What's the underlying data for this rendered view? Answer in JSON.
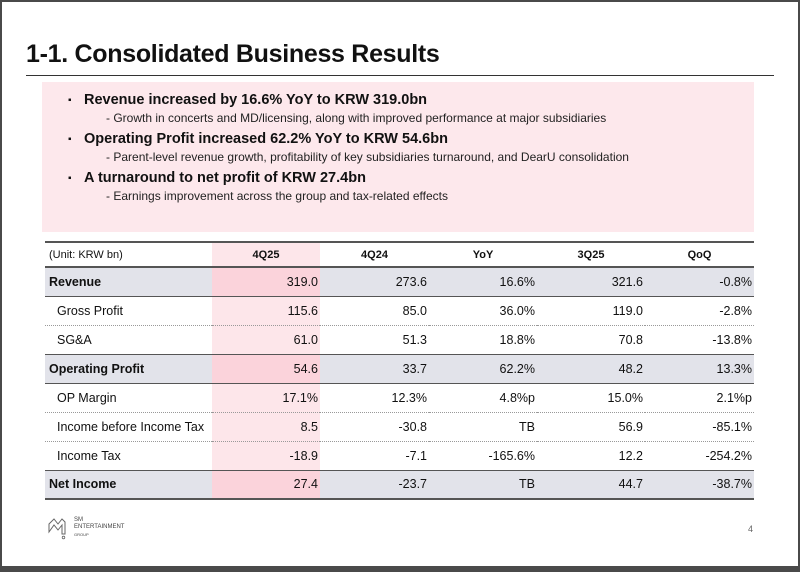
{
  "title": "1-1. Consolidated Business Results",
  "highlights": [
    {
      "bullet": "Revenue increased by 16.6% YoY to KRW 319.0bn",
      "sub": "Growth in concerts and MD/licensing, along with improved performance at major subsidiaries"
    },
    {
      "bullet": "Operating Profit increased 62.2% YoY to KRW 54.6bn",
      "sub": "Parent-level revenue growth, profitability of key subsidiaries turnaround, and DearU consolidation"
    },
    {
      "bullet": "A turnaround to net profit of KRW 27.4bn",
      "sub": "Earnings improvement across the group and tax-related effects"
    }
  ],
  "table": {
    "unit": "(Unit: KRW bn)",
    "columns": [
      "4Q25",
      "4Q24",
      "YoY",
      "3Q25",
      "QoQ"
    ],
    "rows": [
      {
        "label": "Revenue",
        "values": [
          "319.0",
          "273.6",
          "16.6%",
          "321.6",
          "-0.8%"
        ]
      },
      {
        "label": "Gross Profit",
        "values": [
          "115.6",
          "85.0",
          "36.0%",
          "119.0",
          "-2.8%"
        ]
      },
      {
        "label": "SG&A",
        "values": [
          "61.0",
          "51.3",
          "18.8%",
          "70.8",
          "-13.8%"
        ]
      },
      {
        "label": "Operating Profit",
        "values": [
          "54.6",
          "33.7",
          "62.2%",
          "48.2",
          "13.3%"
        ]
      },
      {
        "label": "OP Margin",
        "values": [
          "17.1%",
          "12.3%",
          "4.8%p",
          "15.0%",
          "2.1%p"
        ]
      },
      {
        "label": "Income before Income Tax",
        "values": [
          "8.5",
          "-30.8",
          "TB",
          "56.9",
          "-85.1%"
        ]
      },
      {
        "label": "Income Tax",
        "values": [
          "-18.9",
          "-7.1",
          "-165.6%",
          "12.2",
          "-254.2%"
        ]
      },
      {
        "label": "Net Income",
        "values": [
          "27.4",
          "-23.7",
          "TB",
          "44.7",
          "-38.7%"
        ]
      }
    ]
  },
  "footer": {
    "logo_lines": [
      "SM",
      "ENTERTAINMENT",
      "GROUP"
    ],
    "page": "4"
  }
}
